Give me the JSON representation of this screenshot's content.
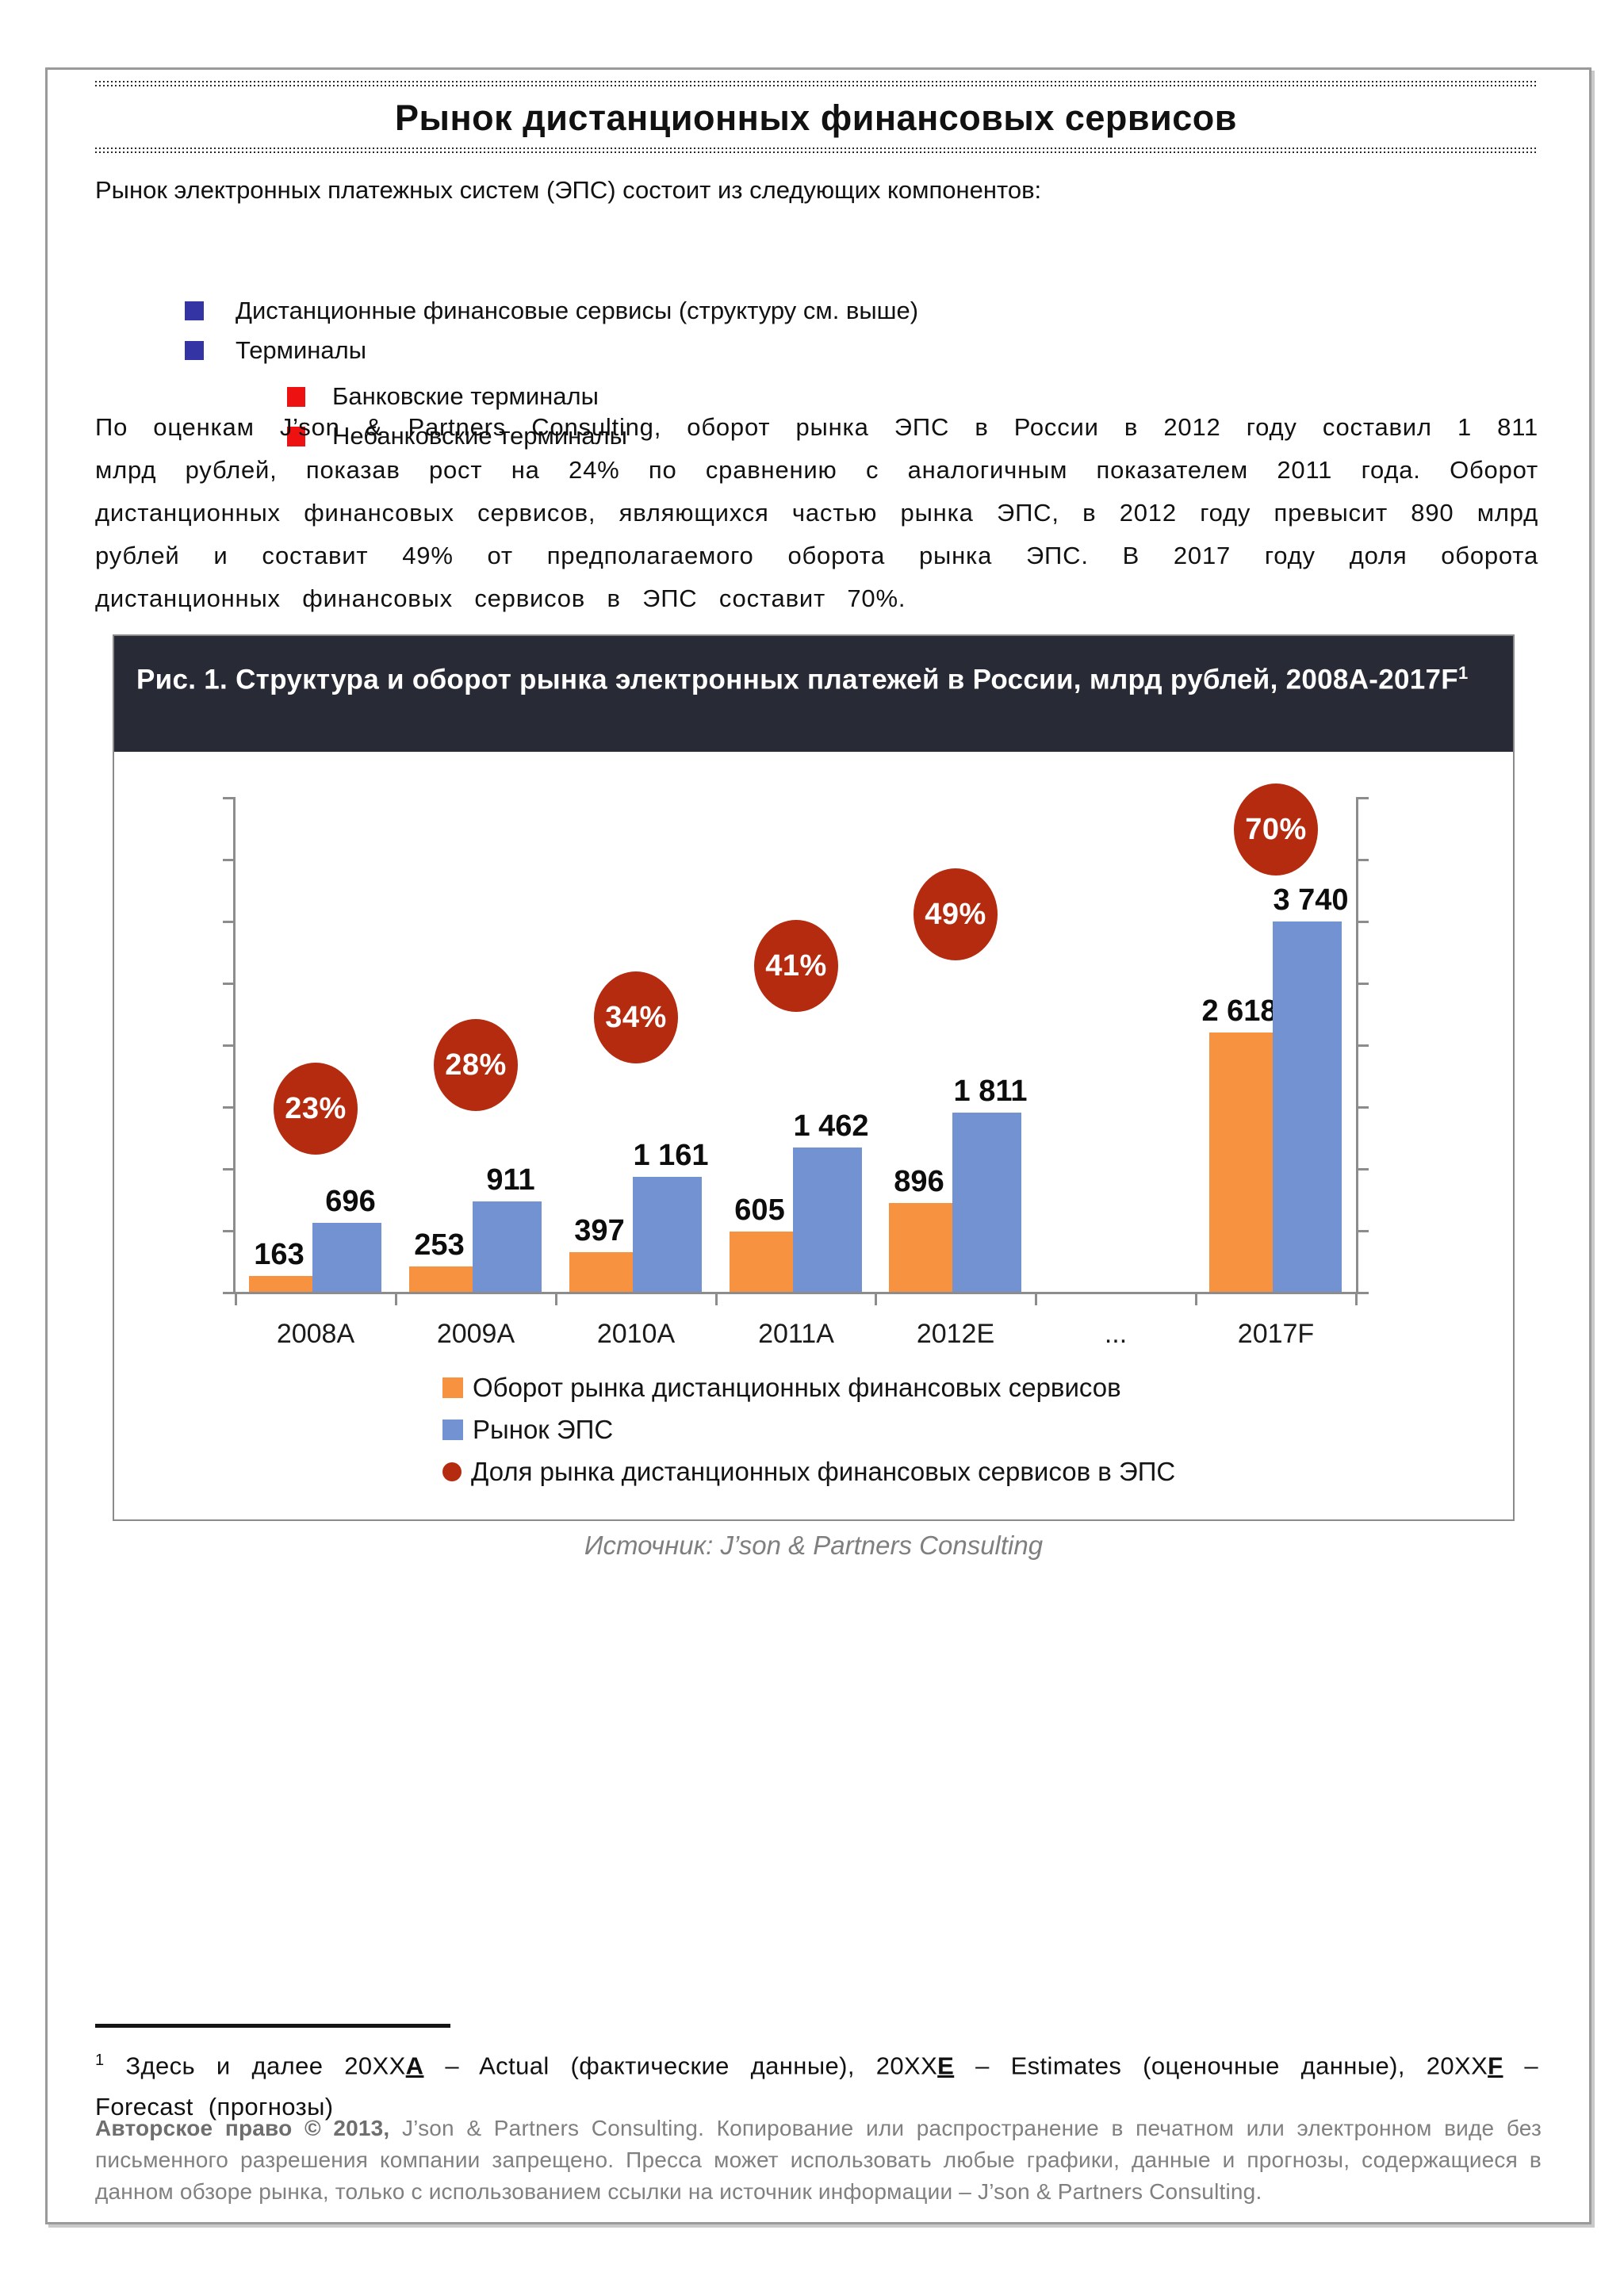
{
  "page": {
    "title": "Рынок дистанционных финансовых сервисов",
    "intro": "Рынок электронных платежных систем (ЭПС) состоит из следующих компонентов:",
    "bullets": [
      {
        "level": 1,
        "label": "Дистанционные финансовые сервисы (структуру см. выше)"
      },
      {
        "level": 1,
        "label": "Терминалы"
      },
      {
        "level": 2,
        "label": "Банковские терминалы"
      },
      {
        "level": 2,
        "label": "Небанковские терминалы"
      }
    ],
    "paragraph": "По оценкам J’son & Partners Consulting, оборот рынка ЭПС в России в 2012 году составил 1 811 млрд рублей, показав рост на 24% по сравнению с аналогичным показателем 2011 года. Оборот дистанционных финансовых сервисов, являющихся частью рынка ЭПС, в 2012 году превысит 890 млрд рублей и составит 49% от предполагаемого оборота рынка ЭПС. В 2017 году доля оборота дистанционных финансовых сервисов в ЭПС составит 70%.",
    "figure_caption": "Рис. 1. Структура  и оборот рынка электронных платежей в России, млрд рублей, 2008A-2017F",
    "figure_caption_sup": "1",
    "source": "Источник: J’son & Partners Consulting",
    "footnote": {
      "sup": "1",
      "t1": " Здесь и далее 20XX",
      "k1": "A",
      "t2": " – Actual (фактические данные), 20XX",
      "k2": "E",
      "t3": " – Estimates (оценочные данные), 20XX",
      "k3": "F",
      "t4": " – Forecast (прогнозы)"
    },
    "copyright": {
      "bold": "Авторское право © 2013,",
      "rest": " J’son & Partners Consulting. Копирование или распространение в печатном или электронном виде без письменного разрешения компании запрещено. Пресса может использовать любые графики, данные и прогнозы, содержащиеся в данном обзоре рынка, только с использованием ссылки на источник информации – J’son & Partners Consulting."
    },
    "appearance": {
      "bullet_level1_color": "#3434A4",
      "bullet_level2_color": "#EE1111",
      "caption_bg": "#282B35",
      "text_gray": "#7F7F7F"
    }
  },
  "chart_data": {
    "type": "bar",
    "title": "Структура и оборот рынка электронных платежей в России, млрд рублей, 2008A-2017F",
    "categories": [
      "2008A",
      "2009A",
      "2010A",
      "2011A",
      "2012E",
      "...",
      "2017F"
    ],
    "series": [
      {
        "name": "Оборот рынка дистанционных  финансовых  сервисов",
        "type": "bar",
        "color": "#F79240",
        "values": [
          163,
          253,
          397,
          605,
          896,
          null,
          2618
        ],
        "labels": [
          "163",
          "253",
          "397",
          "605",
          "896",
          "",
          "2 618"
        ]
      },
      {
        "name": "Рынок ЭПС",
        "type": "bar",
        "color": "#7292D2",
        "values": [
          696,
          911,
          1161,
          1462,
          1811,
          null,
          3740
        ],
        "labels": [
          "696",
          "911",
          "1 161",
          "1 462",
          "1 811",
          "",
          "3 740"
        ]
      },
      {
        "name": "Доля рынка дистанционных  финансовых  сервисов  в ЭПС",
        "type": "bubble-label",
        "color": "#B42B10",
        "values": [
          23,
          28,
          34,
          41,
          49,
          null,
          70
        ],
        "labels": [
          "23%",
          "28%",
          "34%",
          "41%",
          "49%",
          "",
          "70%"
        ],
        "y_frac": [
          0.37,
          0.458,
          0.554,
          0.659,
          0.763,
          null,
          0.934
        ]
      }
    ],
    "xlabel": "",
    "ylabel": "",
    "ylim": [
      0,
      5000
    ],
    "ytick_count": 9,
    "grid": false,
    "axis_color": "#8C8C8C",
    "legend_position": "bottom-left-inside",
    "value_labels": true,
    "axis_tick_labels_visible": false
  }
}
